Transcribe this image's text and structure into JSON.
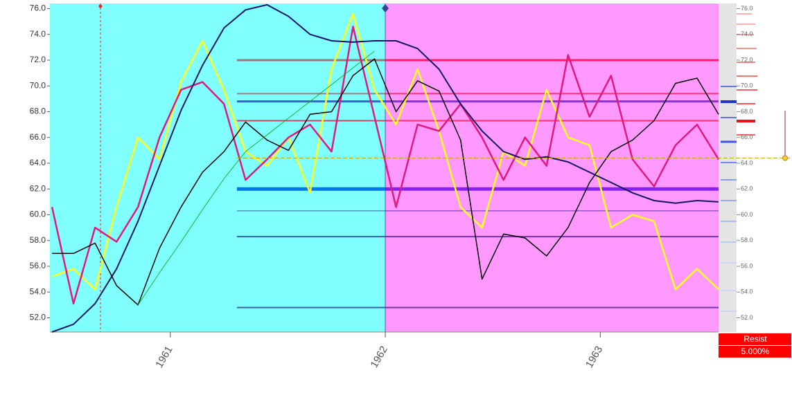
{
  "chart_data": {
    "type": "line",
    "x": [
      1960.45,
      1960.55,
      1960.65,
      1960.75,
      1960.85,
      1960.95,
      1961.05,
      1961.15,
      1961.25,
      1961.35,
      1961.45,
      1961.55,
      1961.65,
      1961.75,
      1961.85,
      1961.95,
      1962.05,
      1962.15,
      1962.25,
      1962.35,
      1962.45,
      1962.55,
      1962.65,
      1962.75,
      1962.85,
      1962.95,
      1963.05,
      1963.15,
      1963.25,
      1963.35,
      1963.45,
      1963.55
    ],
    "series": [
      {
        "color": "#ffff22",
        "width": 2.5,
        "values": [
          55.2,
          55.8,
          54.2,
          60.6,
          66.0,
          64.3,
          70.3,
          73.5,
          69.7,
          64.9,
          63.8,
          66.0,
          61.7,
          71.3,
          75.6,
          69.7,
          67.0,
          71.3,
          66.5,
          60.6,
          59.0,
          64.9,
          63.8,
          69.7,
          66.0,
          65.4,
          59.0,
          60.0,
          59.5,
          54.2,
          55.8,
          54.2
        ]
      },
      {
        "color": "#e0197d",
        "width": 2.5,
        "values": [
          60.6,
          53.1,
          59.0,
          57.9,
          60.6,
          66.0,
          69.7,
          70.3,
          68.6,
          62.7,
          64.3,
          66.0,
          67.0,
          64.9,
          74.6,
          67.6,
          60.6,
          67.0,
          66.5,
          68.6,
          66.0,
          62.7,
          66.0,
          63.8,
          72.4,
          67.6,
          70.8,
          64.3,
          62.2,
          65.4,
          67.0,
          64.3
        ]
      },
      {
        "color": "#000000",
        "width": 1.5,
        "values": [
          57.0,
          57.0,
          57.8,
          54.5,
          53.0,
          57.4,
          60.6,
          63.3,
          64.9,
          67.2,
          65.8,
          65.0,
          67.8,
          68.0,
          70.8,
          72.1,
          68.0,
          70.4,
          69.6,
          65.8,
          55.0,
          58.5,
          58.2,
          56.8,
          59.0,
          62.5,
          64.9,
          65.8,
          67.3,
          70.2,
          70.6,
          67.8
        ]
      },
      {
        "color": "#00aa00",
        "width": 0.8,
        "values": [
          null,
          null,
          null,
          null,
          53.0,
          55.5,
          57.9,
          60.4,
          62.8,
          64.9,
          66.2,
          67.5,
          68.8,
          70.1,
          71.4,
          72.7,
          null,
          null,
          null,
          null,
          null,
          null,
          null,
          null,
          null,
          null,
          null,
          null,
          null,
          null,
          null,
          null
        ]
      },
      {
        "color": "#141466",
        "width": 2,
        "values": [
          50.9,
          51.5,
          53.1,
          55.8,
          59.5,
          63.8,
          68.1,
          71.6,
          74.5,
          75.9,
          76.3,
          75.4,
          74.0,
          73.5,
          73.4,
          73.5,
          73.5,
          72.9,
          71.3,
          68.6,
          66.5,
          64.9,
          64.3,
          64.5,
          64.1,
          63.3,
          62.5,
          61.7,
          61.1,
          60.9,
          61.1,
          61.0
        ]
      }
    ],
    "xlim": [
      1960.44,
      1963.55
    ],
    "ylim": [
      50.9,
      76.4
    ],
    "xticks": [
      1961,
      1962,
      1963
    ],
    "yticks": [
      {
        "value": 52,
        "label": "52.0"
      },
      {
        "value": 54,
        "label": "54.0"
      },
      {
        "value": 56,
        "label": "56.0"
      },
      {
        "value": 58,
        "label": "58.0"
      },
      {
        "value": 60,
        "label": "60.0"
      },
      {
        "value": 62,
        "label": "62.0"
      },
      {
        "value": 64,
        "label": "64.0"
      },
      {
        "value": 66,
        "label": "66.0"
      },
      {
        "value": 68,
        "label": "68.0"
      },
      {
        "value": 70,
        "label": "70.0"
      },
      {
        "value": 72,
        "label": "72.0"
      },
      {
        "value": 74,
        "label": "74.0"
      },
      {
        "value": 76,
        "label": "76.0"
      }
    ],
    "regions": [
      {
        "start": 1960.44,
        "end": 1962,
        "color": "#80ffff"
      },
      {
        "start": 1962,
        "end": 1963.55,
        "color": "#ff99ff"
      }
    ],
    "levels_start": 1961.31,
    "levels": [
      {
        "value": 72.0,
        "width": 3,
        "colors": [
          "#997777",
          "#ff2060"
        ]
      },
      {
        "value": 69.4,
        "width": 2,
        "colors": [
          "#aa7777",
          "#ff3070"
        ]
      },
      {
        "value": 68.8,
        "width": 3,
        "colors": [
          "#3366cc",
          "#8833cc"
        ]
      },
      {
        "value": 67.3,
        "width": 2,
        "colors": [
          "#cc4466",
          "#ff3070"
        ]
      },
      {
        "value": 62.0,
        "width": 5,
        "colors": [
          "#0077ee",
          "#8822ee"
        ]
      },
      {
        "value": 60.3,
        "width": 1,
        "colors": [
          "#336699",
          "#6633aa"
        ]
      },
      {
        "value": 58.3,
        "width": 2,
        "colors": [
          "#336699",
          "#7733aa"
        ]
      },
      {
        "value": 52.8,
        "width": 2,
        "colors": [
          "#336699",
          "#7733aa"
        ]
      }
    ],
    "current_level": 64.4,
    "markers": [
      {
        "x": 1960.675,
        "color": "#ee2222"
      },
      {
        "x": 1962,
        "color": "#334499"
      }
    ],
    "panel": {
      "label": "Resist",
      "value": "5.000%"
    }
  }
}
